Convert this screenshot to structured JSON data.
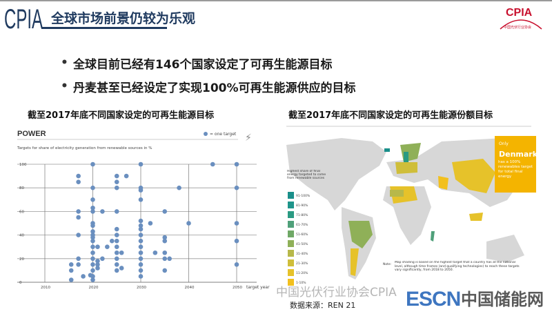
{
  "header": {
    "logo": "CPIA",
    "title": "全球市场前景仍较为乐观",
    "corner_logo": "CPIA",
    "corner_logo_sub": "中国光伏行业协会"
  },
  "bullets": [
    "全球目前已经有146个国家设定了可再生能源目标",
    "丹麦甚至已经设定了实现100%可再生能源供应的目标"
  ],
  "left_caption": "截至2017年底不同国家设定的可再生能源目标",
  "right_caption": "截至2017年底不同国家设定的可再生能源份额目标",
  "chart_data": {
    "type": "scatter",
    "title": "POWER",
    "subtitle": "Targets for share of electricity generation from renewable sources in %",
    "legend": "= one target",
    "legend_placement": "top-right",
    "xlabel": "target year",
    "x_ticks": [
      "2010",
      "2020",
      "2030",
      "2040",
      "2050"
    ],
    "y_ticks": [
      "0",
      "20",
      "40",
      "60",
      "80",
      "100"
    ],
    "xlim": [
      2010,
      2050
    ],
    "ylim": [
      0,
      100
    ],
    "grid": true,
    "color": "#6a8fbf",
    "points": [
      [
        2015.5,
        15
      ],
      [
        2015.5,
        10
      ],
      [
        2015.5,
        2
      ],
      [
        2017,
        90
      ],
      [
        2017,
        85
      ],
      [
        2017,
        60
      ],
      [
        2017,
        55
      ],
      [
        2017,
        40
      ],
      [
        2017,
        20
      ],
      [
        2017,
        15
      ],
      [
        2018,
        5
      ],
      [
        2019.5,
        6
      ],
      [
        2020,
        100
      ],
      [
        2020,
        80
      ],
      [
        2020,
        70
      ],
      [
        2020,
        63
      ],
      [
        2020,
        60
      ],
      [
        2020,
        50
      ],
      [
        2020,
        48
      ],
      [
        2020,
        43
      ],
      [
        2020,
        40
      ],
      [
        2020,
        38
      ],
      [
        2020,
        35
      ],
      [
        2020,
        30
      ],
      [
        2020,
        25
      ],
      [
        2020,
        20
      ],
      [
        2020,
        15
      ],
      [
        2020,
        10
      ],
      [
        2020,
        5
      ],
      [
        2020,
        2
      ],
      [
        2021,
        30
      ],
      [
        2021,
        18
      ],
      [
        2021,
        15
      ],
      [
        2021,
        12
      ],
      [
        2022,
        60
      ],
      [
        2022,
        20
      ],
      [
        2023,
        30
      ],
      [
        2024,
        35
      ],
      [
        2025,
        90
      ],
      [
        2025,
        85
      ],
      [
        2025,
        80
      ],
      [
        2025,
        60
      ],
      [
        2025,
        45
      ],
      [
        2025,
        40
      ],
      [
        2025,
        35
      ],
      [
        2025,
        30
      ],
      [
        2025,
        25
      ],
      [
        2025,
        20
      ],
      [
        2025,
        15
      ],
      [
        2025,
        10
      ],
      [
        2026,
        25
      ],
      [
        2026,
        12
      ],
      [
        2027,
        90
      ],
      [
        2030,
        100
      ],
      [
        2030,
        80
      ],
      [
        2030,
        78
      ],
      [
        2030,
        70
      ],
      [
        2030,
        52
      ],
      [
        2030,
        48
      ],
      [
        2030,
        45
      ],
      [
        2030,
        40
      ],
      [
        2030,
        35
      ],
      [
        2030,
        30
      ],
      [
        2030,
        25
      ],
      [
        2030,
        20
      ],
      [
        2030,
        15
      ],
      [
        2030,
        10
      ],
      [
        2030,
        5
      ],
      [
        2032,
        50
      ],
      [
        2033,
        25
      ],
      [
        2035,
        60
      ],
      [
        2035,
        38
      ],
      [
        2035,
        35
      ],
      [
        2035,
        25
      ],
      [
        2035,
        20
      ],
      [
        2035,
        10
      ],
      [
        2036,
        20
      ],
      [
        2038,
        80
      ],
      [
        2040,
        50
      ],
      [
        2045,
        100
      ],
      [
        2050,
        100
      ],
      [
        2050,
        80
      ],
      [
        2050,
        50
      ],
      [
        2050,
        35
      ],
      [
        2050,
        15
      ]
    ]
  },
  "map": {
    "legend_title": "Highest share of final energy targeted to come from renewable sources",
    "legend": [
      {
        "label": "91-100%",
        "color": "#1a8f8a"
      },
      {
        "label": "81-90%",
        "color": "#1e948a"
      },
      {
        "label": "71-80%",
        "color": "#2a9a82"
      },
      {
        "label": "61-70%",
        "color": "#4fa07a"
      },
      {
        "label": "51-60%",
        "color": "#6fa866"
      },
      {
        "label": "41-50%",
        "color": "#8fb058"
      },
      {
        "label": "31-40%",
        "color": "#b7b84a"
      },
      {
        "label": "21-30%",
        "color": "#cfbe3a"
      },
      {
        "label": "11-20%",
        "color": "#e6c22a"
      },
      {
        "label": "1-10%",
        "color": "#f2c01e"
      }
    ],
    "callout": {
      "pre": "Only",
      "name": "Denmark",
      "post": "has a 100% renewables target for total final energy",
      "color": "#f4b400"
    },
    "note_label": "Note:",
    "note": "Map shading is based on the highest target that a country has at the national level, although time frames (and qualifying technologies) to reach these targets vary significantly, from 2018 to 2050."
  },
  "watermark": {
    "wechat": "中国光伏行业协会CPIA",
    "brand": "ESCN",
    "brand_cn": "中国储能网"
  },
  "source": "数据来源：REN 21"
}
